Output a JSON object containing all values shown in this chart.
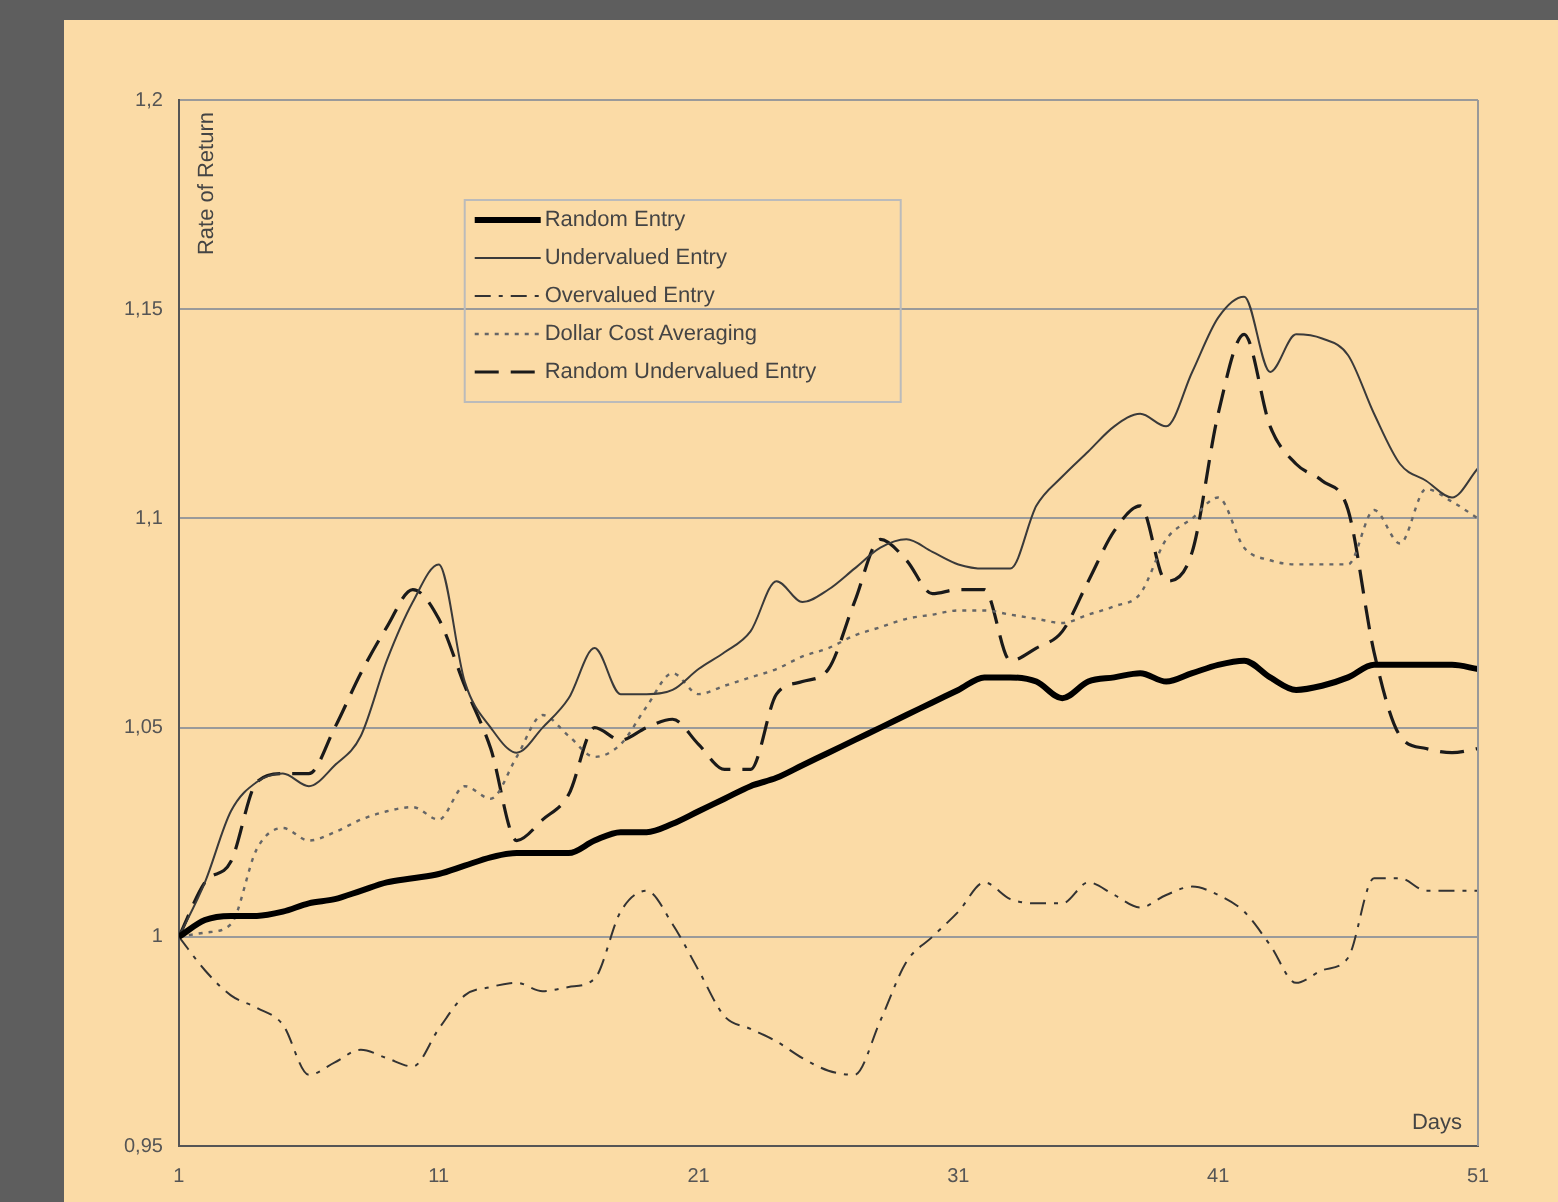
{
  "chart_data": {
    "type": "line",
    "xlabel": "Days",
    "ylabel": "Rate of Return",
    "x": [
      1,
      2,
      3,
      4,
      5,
      6,
      7,
      8,
      9,
      10,
      11,
      12,
      13,
      14,
      15,
      16,
      17,
      18,
      19,
      20,
      21,
      22,
      23,
      24,
      25,
      26,
      27,
      28,
      29,
      30,
      31,
      32,
      33,
      34,
      35,
      36,
      37,
      38,
      39,
      40,
      41,
      42,
      43,
      44,
      45,
      46,
      47,
      48,
      49,
      50,
      51
    ],
    "xlim": [
      1,
      51
    ],
    "xticks": [
      1,
      11,
      21,
      31,
      41,
      51
    ],
    "ylim": [
      0.95,
      1.2
    ],
    "yticks": [
      {
        "value": 0.95,
        "label": "0,95"
      },
      {
        "value": 1,
        "label": "1"
      },
      {
        "value": 1.05,
        "label": "1,05"
      },
      {
        "value": 1.1,
        "label": "1,1"
      },
      {
        "value": 1.15,
        "label": "1,15"
      },
      {
        "value": 1.2,
        "label": "1,2"
      }
    ],
    "grid": "y",
    "legend": "top left",
    "marker": "none",
    "series": [
      {
        "name": "Random Entry",
        "color": "#000000",
        "line_style": "solid",
        "values": [
          1.0,
          1.004,
          1.005,
          1.005,
          1.006,
          1.008,
          1.009,
          1.011,
          1.013,
          1.014,
          1.015,
          1.017,
          1.019,
          1.02,
          1.02,
          1.02,
          1.023,
          1.025,
          1.025,
          1.027,
          1.03,
          1.033,
          1.036,
          1.038,
          1.041,
          1.044,
          1.047,
          1.05,
          1.053,
          1.056,
          1.059,
          1.062,
          1.062,
          1.061,
          1.057,
          1.061,
          1.062,
          1.063,
          1.061,
          1.063,
          1.065,
          1.066,
          1.062,
          1.059,
          1.06,
          1.062,
          1.065,
          1.065,
          1.065,
          1.065,
          1.064
        ]
      },
      {
        "name": "Undervalued Entry",
        "color": "#3a3a3a",
        "line_style": "solid",
        "values": [
          1.0,
          1.013,
          1.03,
          1.037,
          1.039,
          1.036,
          1.041,
          1.048,
          1.066,
          1.08,
          1.089,
          1.061,
          1.05,
          1.044,
          1.05,
          1.057,
          1.069,
          1.058,
          1.058,
          1.059,
          1.064,
          1.068,
          1.073,
          1.085,
          1.08,
          1.083,
          1.088,
          1.093,
          1.095,
          1.092,
          1.089,
          1.088,
          1.088,
          1.103,
          1.11,
          1.116,
          1.122,
          1.125,
          1.122,
          1.135,
          1.148,
          1.153,
          1.135,
          1.144,
          1.143,
          1.139,
          1.125,
          1.113,
          1.109,
          1.105,
          1.112
        ]
      },
      {
        "name": "Overvalued Entry",
        "color": "#333333",
        "line_style": "dashdot",
        "values": [
          1.0,
          0.992,
          0.986,
          0.983,
          0.979,
          0.967,
          0.97,
          0.973,
          0.971,
          0.969,
          0.978,
          0.986,
          0.988,
          0.989,
          0.987,
          0.988,
          0.99,
          1.006,
          1.011,
          1.003,
          0.992,
          0.981,
          0.978,
          0.975,
          0.971,
          0.968,
          0.967,
          0.98,
          0.994,
          1.0,
          1.006,
          1.013,
          1.009,
          1.008,
          1.008,
          1.013,
          1.01,
          1.007,
          1.01,
          1.012,
          1.01,
          1.006,
          0.998,
          0.989,
          0.992,
          0.995,
          1.014,
          1.014,
          1.011,
          1.011,
          1.011
        ]
      },
      {
        "name": "Dollar Cost Averaging",
        "color": "#666666",
        "line_style": "dotted",
        "values": [
          1.0,
          1.001,
          1.003,
          1.021,
          1.026,
          1.023,
          1.025,
          1.028,
          1.03,
          1.031,
          1.028,
          1.036,
          1.033,
          1.043,
          1.053,
          1.048,
          1.043,
          1.046,
          1.055,
          1.063,
          1.058,
          1.06,
          1.062,
          1.064,
          1.067,
          1.069,
          1.072,
          1.074,
          1.076,
          1.077,
          1.078,
          1.078,
          1.077,
          1.076,
          1.075,
          1.077,
          1.079,
          1.082,
          1.095,
          1.1,
          1.105,
          1.093,
          1.09,
          1.089,
          1.089,
          1.089,
          1.102,
          1.094,
          1.107,
          1.104,
          1.1
        ]
      },
      {
        "name": "Random Undervalued Entry",
        "color": "#1a1a1a",
        "line_style": "dashed",
        "values": [
          1.0,
          1.013,
          1.018,
          1.037,
          1.039,
          1.039,
          1.05,
          1.063,
          1.074,
          1.083,
          1.076,
          1.06,
          1.045,
          1.023,
          1.028,
          1.034,
          1.05,
          1.047,
          1.05,
          1.052,
          1.046,
          1.04,
          1.04,
          1.058,
          1.061,
          1.064,
          1.08,
          1.095,
          1.09,
          1.082,
          1.083,
          1.083,
          1.066,
          1.069,
          1.073,
          1.085,
          1.097,
          1.103,
          1.085,
          1.092,
          1.125,
          1.144,
          1.122,
          1.113,
          1.109,
          1.102,
          1.068,
          1.048,
          1.045,
          1.044,
          1.045
        ]
      }
    ]
  }
}
